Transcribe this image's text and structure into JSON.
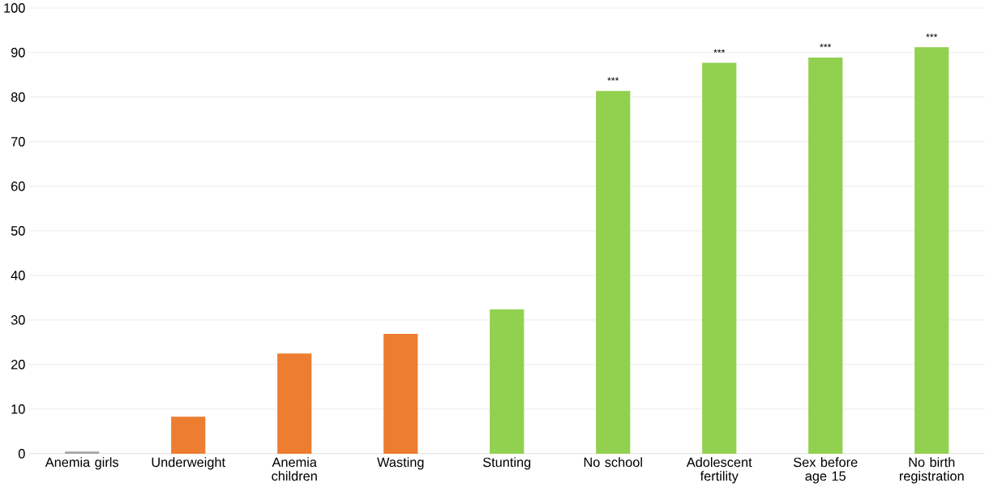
{
  "chart_data": {
    "type": "bar",
    "categories": [
      "Anemia girls",
      "Underweight",
      "Anemia children",
      "Wasting",
      "Stunting",
      "No school",
      "Adolescent fertility",
      "Sex before age 15",
      "No birth registration"
    ],
    "values": [
      0.5,
      8.3,
      22.5,
      26.9,
      32.4,
      81.4,
      87.7,
      88.9,
      91.2
    ],
    "colors": [
      "#a5a5a5",
      "#ed7d31",
      "#ed7d31",
      "#ed7d31",
      "#92d050",
      "#92d050",
      "#92d050",
      "#92d050",
      "#92d050"
    ],
    "ylim": [
      0,
      100
    ],
    "yticks": [
      0,
      10,
      20,
      30,
      40,
      50,
      60,
      70,
      80,
      90,
      100
    ],
    "grid": "y",
    "annotations": [
      {
        "text": "***",
        "x": "No school",
        "y": 81.4
      },
      {
        "text": "***",
        "x": "Adolescent fertility",
        "y": 87.7
      },
      {
        "text": "***",
        "x": "Sex before age 15",
        "y": 88.9
      },
      {
        "text": "***",
        "x": "No birth registration",
        "y": 91.2
      }
    ]
  }
}
